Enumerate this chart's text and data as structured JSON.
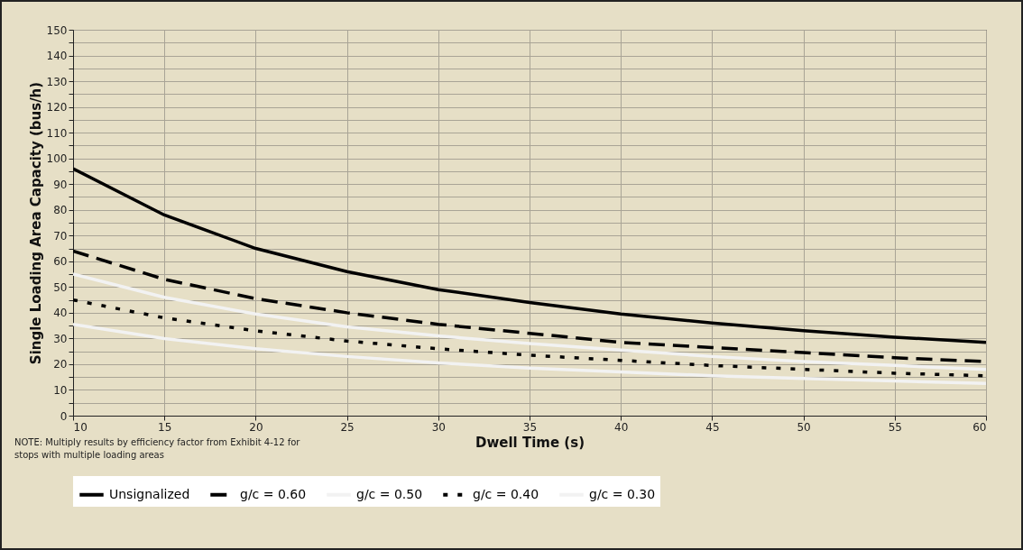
{
  "chart_data": {
    "type": "line",
    "xlabel": "Dwell Time (s)",
    "ylabel": "Single Loading Area Capacity (bus/h)",
    "annotations": [
      "NOTE: Multiply results by efficiency factor from Exhibit 4-12 for stops with multiple loading areas"
    ],
    "x": [
      10,
      15,
      20,
      25,
      30,
      35,
      40,
      45,
      50,
      55,
      60
    ],
    "series": [
      {
        "name": "Unsignalized",
        "color": "#000000",
        "line_style": "solid",
        "values": [
          96,
          78,
          65,
          56,
          49,
          44,
          39.5,
          36,
          33,
          30.5,
          28.5
        ]
      },
      {
        "name": "g/c = 0.60",
        "color": "#000000",
        "line_style": "dashed",
        "values": [
          64,
          53,
          45.5,
          40,
          35.5,
          32,
          28.5,
          26.5,
          24.5,
          22.5,
          21
        ]
      },
      {
        "name": "g/c = 0.50",
        "color": "#f2f2f2",
        "line_style": "solid",
        "values": [
          55,
          46,
          39.5,
          34.5,
          31,
          28,
          25.5,
          23,
          21,
          19.5,
          18
        ]
      },
      {
        "name": "g/c = 0.40",
        "color": "#000000",
        "line_style": "dotted",
        "values": [
          45,
          38,
          33,
          29,
          26,
          23.5,
          21.5,
          19.5,
          18,
          16.5,
          15.5
        ]
      },
      {
        "name": "g/c = 0.30",
        "color": "#f2f2f2",
        "line_style": "solid",
        "values": [
          35.5,
          30,
          26,
          23,
          20.5,
          18.5,
          17,
          15.5,
          14.5,
          13.5,
          12.5
        ]
      }
    ],
    "xlim": [
      10,
      60
    ],
    "xticks": [
      10,
      15,
      20,
      25,
      30,
      35,
      40,
      45,
      50,
      55,
      60
    ],
    "ylim": [
      0,
      150
    ],
    "yticks": [
      0,
      {
        "value": 5,
        "label": null
      },
      10,
      {
        "value": 15,
        "label": null
      },
      20,
      {
        "value": 25,
        "label": null
      },
      30,
      {
        "value": 35,
        "label": null
      },
      40,
      {
        "value": 45,
        "label": null
      },
      50,
      {
        "value": 55,
        "label": null
      },
      60,
      {
        "value": 65,
        "label": null
      },
      70,
      {
        "value": 75,
        "label": null
      },
      80,
      {
        "value": 85,
        "label": null
      },
      90,
      {
        "value": 95,
        "label": null
      },
      100,
      {
        "value": 105,
        "label": null
      },
      110,
      {
        "value": 115,
        "label": null
      },
      120,
      {
        "value": 125,
        "label": null
      },
      130,
      {
        "value": 135,
        "label": null
      },
      140,
      {
        "value": 145,
        "label": null
      },
      150
    ],
    "grid": true,
    "legend": "bottom"
  }
}
